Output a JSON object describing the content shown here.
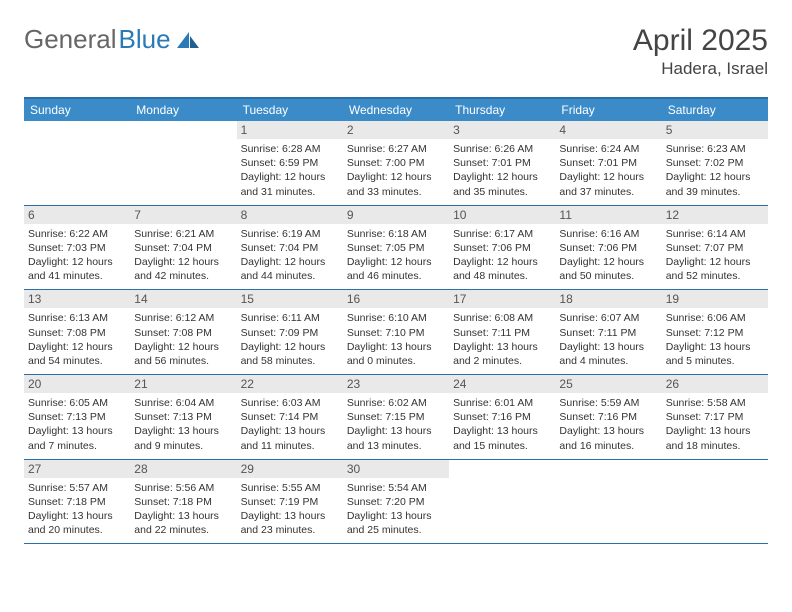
{
  "brand": {
    "part1": "General",
    "part2": "Blue"
  },
  "title": "April 2025",
  "location": "Hadera, Israel",
  "colors": {
    "header_bar": "#3b8bc9",
    "rule": "#2a6fa8",
    "daynum_bg": "#e9e9e9",
    "text": "#333333",
    "title_text": "#444444"
  },
  "weekdays": [
    "Sunday",
    "Monday",
    "Tuesday",
    "Wednesday",
    "Thursday",
    "Friday",
    "Saturday"
  ],
  "weeks": [
    [
      null,
      null,
      {
        "n": "1",
        "sr": "Sunrise: 6:28 AM",
        "ss": "Sunset: 6:59 PM",
        "d1": "Daylight: 12 hours",
        "d2": "and 31 minutes."
      },
      {
        "n": "2",
        "sr": "Sunrise: 6:27 AM",
        "ss": "Sunset: 7:00 PM",
        "d1": "Daylight: 12 hours",
        "d2": "and 33 minutes."
      },
      {
        "n": "3",
        "sr": "Sunrise: 6:26 AM",
        "ss": "Sunset: 7:01 PM",
        "d1": "Daylight: 12 hours",
        "d2": "and 35 minutes."
      },
      {
        "n": "4",
        "sr": "Sunrise: 6:24 AM",
        "ss": "Sunset: 7:01 PM",
        "d1": "Daylight: 12 hours",
        "d2": "and 37 minutes."
      },
      {
        "n": "5",
        "sr": "Sunrise: 6:23 AM",
        "ss": "Sunset: 7:02 PM",
        "d1": "Daylight: 12 hours",
        "d2": "and 39 minutes."
      }
    ],
    [
      {
        "n": "6",
        "sr": "Sunrise: 6:22 AM",
        "ss": "Sunset: 7:03 PM",
        "d1": "Daylight: 12 hours",
        "d2": "and 41 minutes."
      },
      {
        "n": "7",
        "sr": "Sunrise: 6:21 AM",
        "ss": "Sunset: 7:04 PM",
        "d1": "Daylight: 12 hours",
        "d2": "and 42 minutes."
      },
      {
        "n": "8",
        "sr": "Sunrise: 6:19 AM",
        "ss": "Sunset: 7:04 PM",
        "d1": "Daylight: 12 hours",
        "d2": "and 44 minutes."
      },
      {
        "n": "9",
        "sr": "Sunrise: 6:18 AM",
        "ss": "Sunset: 7:05 PM",
        "d1": "Daylight: 12 hours",
        "d2": "and 46 minutes."
      },
      {
        "n": "10",
        "sr": "Sunrise: 6:17 AM",
        "ss": "Sunset: 7:06 PM",
        "d1": "Daylight: 12 hours",
        "d2": "and 48 minutes."
      },
      {
        "n": "11",
        "sr": "Sunrise: 6:16 AM",
        "ss": "Sunset: 7:06 PM",
        "d1": "Daylight: 12 hours",
        "d2": "and 50 minutes."
      },
      {
        "n": "12",
        "sr": "Sunrise: 6:14 AM",
        "ss": "Sunset: 7:07 PM",
        "d1": "Daylight: 12 hours",
        "d2": "and 52 minutes."
      }
    ],
    [
      {
        "n": "13",
        "sr": "Sunrise: 6:13 AM",
        "ss": "Sunset: 7:08 PM",
        "d1": "Daylight: 12 hours",
        "d2": "and 54 minutes."
      },
      {
        "n": "14",
        "sr": "Sunrise: 6:12 AM",
        "ss": "Sunset: 7:08 PM",
        "d1": "Daylight: 12 hours",
        "d2": "and 56 minutes."
      },
      {
        "n": "15",
        "sr": "Sunrise: 6:11 AM",
        "ss": "Sunset: 7:09 PM",
        "d1": "Daylight: 12 hours",
        "d2": "and 58 minutes."
      },
      {
        "n": "16",
        "sr": "Sunrise: 6:10 AM",
        "ss": "Sunset: 7:10 PM",
        "d1": "Daylight: 13 hours",
        "d2": "and 0 minutes."
      },
      {
        "n": "17",
        "sr": "Sunrise: 6:08 AM",
        "ss": "Sunset: 7:11 PM",
        "d1": "Daylight: 13 hours",
        "d2": "and 2 minutes."
      },
      {
        "n": "18",
        "sr": "Sunrise: 6:07 AM",
        "ss": "Sunset: 7:11 PM",
        "d1": "Daylight: 13 hours",
        "d2": "and 4 minutes."
      },
      {
        "n": "19",
        "sr": "Sunrise: 6:06 AM",
        "ss": "Sunset: 7:12 PM",
        "d1": "Daylight: 13 hours",
        "d2": "and 5 minutes."
      }
    ],
    [
      {
        "n": "20",
        "sr": "Sunrise: 6:05 AM",
        "ss": "Sunset: 7:13 PM",
        "d1": "Daylight: 13 hours",
        "d2": "and 7 minutes."
      },
      {
        "n": "21",
        "sr": "Sunrise: 6:04 AM",
        "ss": "Sunset: 7:13 PM",
        "d1": "Daylight: 13 hours",
        "d2": "and 9 minutes."
      },
      {
        "n": "22",
        "sr": "Sunrise: 6:03 AM",
        "ss": "Sunset: 7:14 PM",
        "d1": "Daylight: 13 hours",
        "d2": "and 11 minutes."
      },
      {
        "n": "23",
        "sr": "Sunrise: 6:02 AM",
        "ss": "Sunset: 7:15 PM",
        "d1": "Daylight: 13 hours",
        "d2": "and 13 minutes."
      },
      {
        "n": "24",
        "sr": "Sunrise: 6:01 AM",
        "ss": "Sunset: 7:16 PM",
        "d1": "Daylight: 13 hours",
        "d2": "and 15 minutes."
      },
      {
        "n": "25",
        "sr": "Sunrise: 5:59 AM",
        "ss": "Sunset: 7:16 PM",
        "d1": "Daylight: 13 hours",
        "d2": "and 16 minutes."
      },
      {
        "n": "26",
        "sr": "Sunrise: 5:58 AM",
        "ss": "Sunset: 7:17 PM",
        "d1": "Daylight: 13 hours",
        "d2": "and 18 minutes."
      }
    ],
    [
      {
        "n": "27",
        "sr": "Sunrise: 5:57 AM",
        "ss": "Sunset: 7:18 PM",
        "d1": "Daylight: 13 hours",
        "d2": "and 20 minutes."
      },
      {
        "n": "28",
        "sr": "Sunrise: 5:56 AM",
        "ss": "Sunset: 7:18 PM",
        "d1": "Daylight: 13 hours",
        "d2": "and 22 minutes."
      },
      {
        "n": "29",
        "sr": "Sunrise: 5:55 AM",
        "ss": "Sunset: 7:19 PM",
        "d1": "Daylight: 13 hours",
        "d2": "and 23 minutes."
      },
      {
        "n": "30",
        "sr": "Sunrise: 5:54 AM",
        "ss": "Sunset: 7:20 PM",
        "d1": "Daylight: 13 hours",
        "d2": "and 25 minutes."
      },
      null,
      null,
      null
    ]
  ]
}
